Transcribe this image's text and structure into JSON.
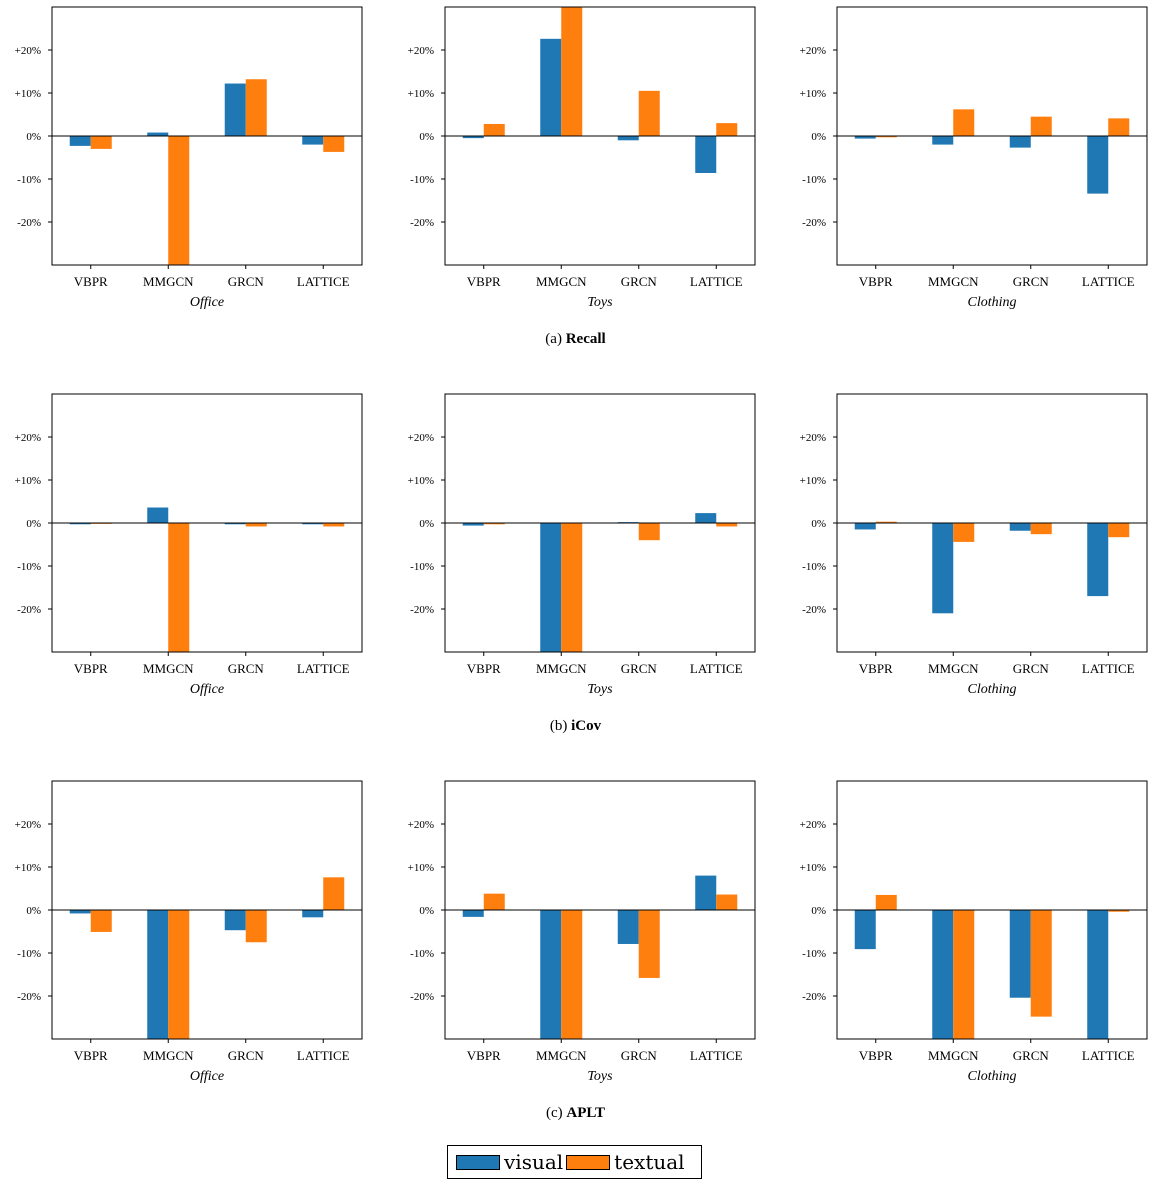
{
  "colors": {
    "visual": "#1f77b4",
    "textual": "#ff7f0e"
  },
  "legend": {
    "visual": "visual",
    "textual": "textual",
    "placement": "bottom-center"
  },
  "captions": [
    {
      "label": "(a)",
      "metric": "Recall"
    },
    {
      "label": "(b)",
      "metric": "iCov"
    },
    {
      "label": "(c)",
      "metric": "APLT"
    }
  ],
  "chart_data": [
    {
      "type": "bar",
      "metric": "Recall",
      "dataset": "Office",
      "categories": [
        "VBPR",
        "MMGCN",
        "GRCN",
        "LATTICE"
      ],
      "yticks": [
        "+20%",
        "+10%",
        "0%",
        "-10%",
        "-20%"
      ],
      "ylim": [
        -30,
        30
      ],
      "series": [
        {
          "name": "visual",
          "values": [
            -2.3,
            0.8,
            12.2,
            -2.0
          ]
        },
        {
          "name": "textual",
          "values": [
            -3.0,
            -30,
            13.2,
            -3.7
          ]
        }
      ]
    },
    {
      "type": "bar",
      "metric": "Recall",
      "dataset": "Toys",
      "categories": [
        "VBPR",
        "MMGCN",
        "GRCN",
        "LATTICE"
      ],
      "yticks": [
        "+20%",
        "+10%",
        "0%",
        "-10%",
        "-20%"
      ],
      "ylim": [
        -30,
        30
      ],
      "series": [
        {
          "name": "visual",
          "values": [
            -0.5,
            22.6,
            -1.0,
            -8.6
          ]
        },
        {
          "name": "textual",
          "values": [
            2.8,
            30,
            10.5,
            3.0
          ]
        }
      ]
    },
    {
      "type": "bar",
      "metric": "Recall",
      "dataset": "Clothing",
      "categories": [
        "VBPR",
        "MMGCN",
        "GRCN",
        "LATTICE"
      ],
      "yticks": [
        "+20%",
        "+10%",
        "0%",
        "-10%",
        "-20%"
      ],
      "ylim": [
        -30,
        30
      ],
      "series": [
        {
          "name": "visual",
          "values": [
            -0.6,
            -2.0,
            -2.7,
            -13.4
          ]
        },
        {
          "name": "textual",
          "values": [
            -0.3,
            6.2,
            4.5,
            4.1
          ]
        }
      ]
    },
    {
      "type": "bar",
      "metric": "iCov",
      "dataset": "Office",
      "categories": [
        "VBPR",
        "MMGCN",
        "GRCN",
        "LATTICE"
      ],
      "yticks": [
        "+20%",
        "+10%",
        "0%",
        "-10%",
        "-20%"
      ],
      "ylim": [
        -30,
        30
      ],
      "series": [
        {
          "name": "visual",
          "values": [
            -0.3,
            3.6,
            -0.3,
            -0.3
          ]
        },
        {
          "name": "textual",
          "values": [
            -0.2,
            -30,
            -0.8,
            -0.8
          ]
        }
      ]
    },
    {
      "type": "bar",
      "metric": "iCov",
      "dataset": "Toys",
      "categories": [
        "VBPR",
        "MMGCN",
        "GRCN",
        "LATTICE"
      ],
      "yticks": [
        "+20%",
        "+10%",
        "0%",
        "-10%",
        "-20%"
      ],
      "ylim": [
        -30,
        30
      ],
      "series": [
        {
          "name": "visual",
          "values": [
            -0.6,
            -30,
            0.2,
            2.3
          ]
        },
        {
          "name": "textual",
          "values": [
            -0.3,
            -30,
            -4.0,
            -0.8
          ]
        }
      ]
    },
    {
      "type": "bar",
      "metric": "iCov",
      "dataset": "Clothing",
      "categories": [
        "VBPR",
        "MMGCN",
        "GRCN",
        "LATTICE"
      ],
      "yticks": [
        "+20%",
        "+10%",
        "0%",
        "-10%",
        "-20%"
      ],
      "ylim": [
        -30,
        30
      ],
      "series": [
        {
          "name": "visual",
          "values": [
            -1.5,
            -21.0,
            -1.8,
            -17.0
          ]
        },
        {
          "name": "textual",
          "values": [
            0.3,
            -4.4,
            -2.6,
            -3.3
          ]
        }
      ]
    },
    {
      "type": "bar",
      "metric": "APLT",
      "dataset": "Office",
      "categories": [
        "VBPR",
        "MMGCN",
        "GRCN",
        "LATTICE"
      ],
      "yticks": [
        "+20%",
        "+10%",
        "0%",
        "-10%",
        "-20%"
      ],
      "ylim": [
        -30,
        30
      ],
      "series": [
        {
          "name": "visual",
          "values": [
            -0.8,
            -30,
            -4.7,
            -1.7
          ]
        },
        {
          "name": "textual",
          "values": [
            -5.1,
            -30,
            -7.5,
            7.6
          ]
        }
      ]
    },
    {
      "type": "bar",
      "metric": "APLT",
      "dataset": "Toys",
      "categories": [
        "VBPR",
        "MMGCN",
        "GRCN",
        "LATTICE"
      ],
      "yticks": [
        "+20%",
        "+10%",
        "0%",
        "-10%",
        "-20%"
      ],
      "ylim": [
        -30,
        30
      ],
      "series": [
        {
          "name": "visual",
          "values": [
            -1.6,
            -30,
            -7.9,
            8.0
          ]
        },
        {
          "name": "textual",
          "values": [
            3.8,
            -30,
            -15.8,
            3.6
          ]
        }
      ]
    },
    {
      "type": "bar",
      "metric": "APLT",
      "dataset": "Clothing",
      "categories": [
        "VBPR",
        "MMGCN",
        "GRCN",
        "LATTICE"
      ],
      "yticks": [
        "+20%",
        "+10%",
        "0%",
        "-10%",
        "-20%"
      ],
      "ylim": [
        -30,
        30
      ],
      "series": [
        {
          "name": "visual",
          "values": [
            -9.1,
            -30,
            -20.4,
            -30
          ]
        },
        {
          "name": "textual",
          "values": [
            3.5,
            -30,
            -24.8,
            -0.4
          ]
        }
      ]
    }
  ]
}
